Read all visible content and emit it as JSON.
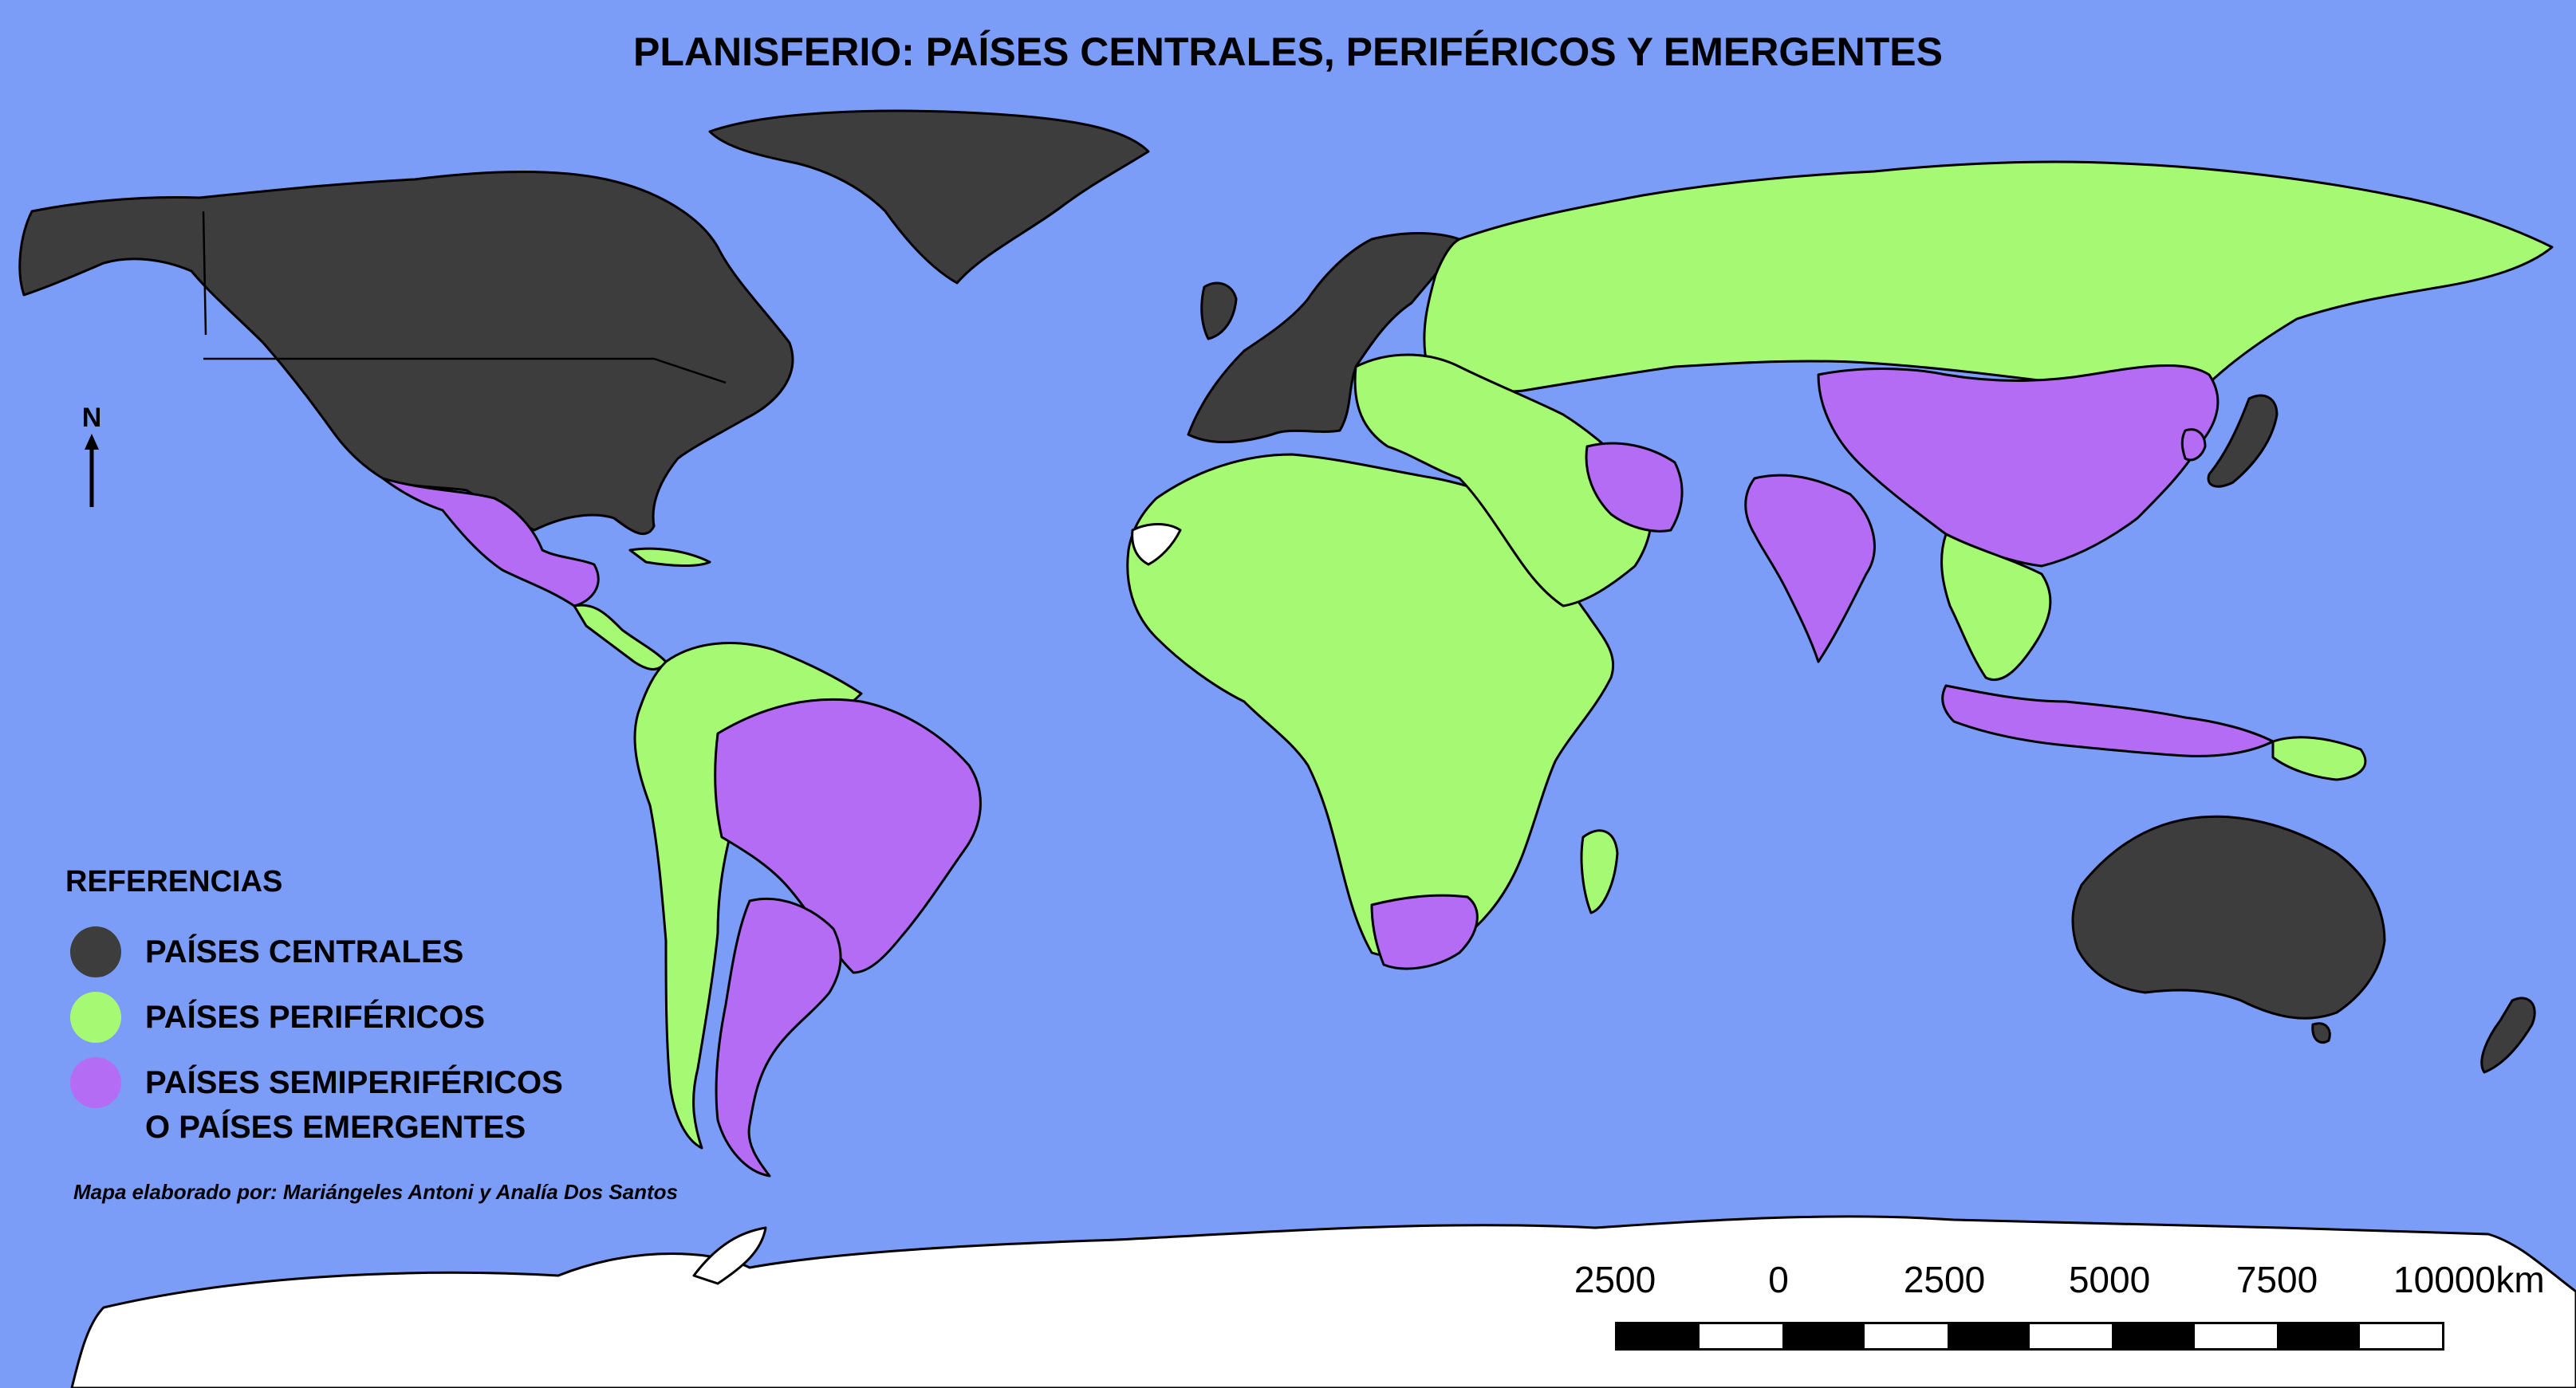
{
  "title": "PLANISFERIO: PAÍSES CENTRALES, PERIFÉRICOS Y EMERGENTES",
  "north_arrow": {
    "label": "N"
  },
  "legend": {
    "title": "REFERENCIAS",
    "items": [
      {
        "label": "PAÍSES CENTRALES",
        "color": "#3d3d3d"
      },
      {
        "label": "PAÍSES PERIFÉRICOS",
        "color": "#a6fa73"
      },
      {
        "label": "PAÍSES SEMIPERIFÉRICOS",
        "label_line2": "O PAÍSES EMERGENTES",
        "color": "#b56cf5"
      }
    ]
  },
  "credit": "Mapa elaborado por: Mariángeles Antoni y Analía Dos Santos",
  "scale_bar": {
    "labels": [
      "2500",
      "0",
      "2500",
      "5000",
      "7500",
      "10000"
    ],
    "unit": "km"
  },
  "colors": {
    "ocean": "#7b9df7",
    "central": "#3d3d3d",
    "peripheral": "#a6fa73",
    "semiperipheral": "#b56cf5",
    "unclassified": "#ffffff"
  },
  "regions": [
    {
      "name": "north-america",
      "category": "central"
    },
    {
      "name": "greenland",
      "category": "central"
    },
    {
      "name": "western-europe",
      "category": "central"
    },
    {
      "name": "japan",
      "category": "central"
    },
    {
      "name": "australia",
      "category": "central"
    },
    {
      "name": "new-zealand",
      "category": "central"
    },
    {
      "name": "mexico",
      "category": "semiperipheral"
    },
    {
      "name": "brazil",
      "category": "semiperipheral"
    },
    {
      "name": "argentina",
      "category": "semiperipheral"
    },
    {
      "name": "south-africa",
      "category": "semiperipheral"
    },
    {
      "name": "iran",
      "category": "semiperipheral"
    },
    {
      "name": "india",
      "category": "semiperipheral"
    },
    {
      "name": "china",
      "category": "semiperipheral"
    },
    {
      "name": "indonesia",
      "category": "semiperipheral"
    },
    {
      "name": "south-korea",
      "category": "semiperipheral"
    },
    {
      "name": "russia",
      "category": "peripheral"
    },
    {
      "name": "africa",
      "category": "peripheral"
    },
    {
      "name": "latin-america-rest",
      "category": "peripheral"
    },
    {
      "name": "middle-east",
      "category": "peripheral"
    },
    {
      "name": "southeast-asia",
      "category": "peripheral"
    },
    {
      "name": "western-sahara",
      "category": "unclassified"
    },
    {
      "name": "antarctica",
      "category": "unclassified"
    }
  ]
}
